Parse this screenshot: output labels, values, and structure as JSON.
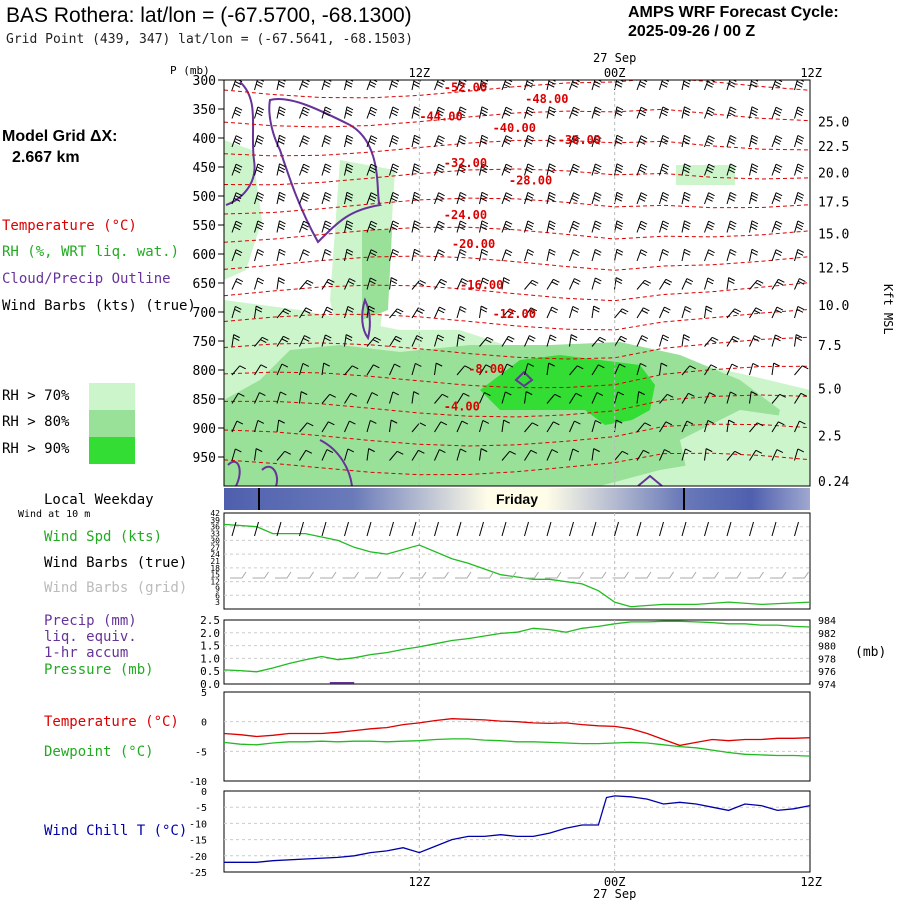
{
  "header": {
    "title": "BAS Rothera:  lat/lon = (-67.5700, -68.1300)",
    "grid_point": "Grid Point (439, 347) lat/lon = (-67.5641, -68.1503)",
    "cycle_label": "AMPS WRF Forecast Cycle:",
    "cycle_value": "2025-09-26 / 00  Z"
  },
  "sidebar": {
    "model_grid_label": "Model Grid ΔX:",
    "model_grid_value": "2.667 km",
    "legend_temperature": "Temperature (°C)",
    "legend_rh": "RH (%, WRT liq. wat.)",
    "legend_cloud": "Cloud/Precip Outline",
    "legend_wind": "Wind Barbs (kts) (true)",
    "rh70": "RH > 70%",
    "rh80": "RH > 80%",
    "rh90": "RH > 90%"
  },
  "time_axis": {
    "top_date": "27 Sep",
    "bottom_date": "27 Sep",
    "ticks": [
      "12Z",
      "00Z",
      "12Z"
    ],
    "local_weekday_label": "Local Weekday",
    "wind_at_10m": "Wind at 10 m",
    "day": "Friday"
  },
  "colors": {
    "temperature": "#dd0000",
    "rh70": "#ccf5cc",
    "rh80": "#99e099",
    "rh90": "#33dd33",
    "cloud": "#663399",
    "wind_speed": "#22bb22",
    "pressure": "#22bb22",
    "dewpoint": "#22bb22",
    "wind_chill": "#0000aa",
    "grid_barbs": "#aaaaaa",
    "band_dark": "#4f5fae",
    "band_light": "#fffde8"
  },
  "chart_data": [
    {
      "type": "heatmap",
      "title": "Cross-section: Temperature, RH, Cloud outline, Wind barbs",
      "left_axis_label": "P (mb)",
      "left_axis_ticks": [
        300,
        350,
        400,
        450,
        500,
        550,
        600,
        650,
        700,
        750,
        800,
        850,
        900,
        950
      ],
      "right_axis_label": "Kft MSL",
      "right_axis_ticks": [
        "25.0",
        "22.5",
        "20.0",
        "17.5",
        "15.0",
        "12.5",
        "10.0",
        "7.5",
        "5.0",
        "2.5",
        "0.24"
      ],
      "right_axis_values": [
        25.0,
        22.5,
        20.0,
        17.5,
        15.0,
        12.5,
        10.0,
        7.5,
        5.0,
        2.5,
        0.24
      ],
      "ylim": [
        300,
        1000
      ],
      "xlim_hours": [
        0,
        36
      ],
      "temperature_contour_labels": [
        {
          "value": "-52.00",
          "hour": 13.5,
          "p": 320
        },
        {
          "value": "-48.00",
          "hour": 18.5,
          "p": 340
        },
        {
          "value": "-44.00",
          "hour": 12.0,
          "p": 370
        },
        {
          "value": "-40.00",
          "hour": 16.5,
          "p": 390
        },
        {
          "value": "-36.00",
          "hour": 20.5,
          "p": 410
        },
        {
          "value": "-32.00",
          "hour": 13.5,
          "p": 450
        },
        {
          "value": "-28.00",
          "hour": 17.5,
          "p": 480
        },
        {
          "value": "-24.00",
          "hour": 13.5,
          "p": 540
        },
        {
          "value": "-20.00",
          "hour": 14.0,
          "p": 590
        },
        {
          "value": "-16.00",
          "hour": 14.5,
          "p": 660
        },
        {
          "value": "-12.00",
          "hour": 16.5,
          "p": 710
        },
        {
          "value": "-8.00",
          "hour": 15.0,
          "p": 805
        },
        {
          "value": "-4.00",
          "hour": 13.5,
          "p": 870
        }
      ]
    },
    {
      "type": "line",
      "title": "Wind Spd (kts)",
      "series_label": "Wind Spd (kts)",
      "barbs_true_label": "Wind Barbs (true)",
      "barbs_grid_label": "Wind Barbs (grid)",
      "y_ticks": [
        3,
        6,
        9,
        12,
        15,
        18,
        21,
        24,
        27,
        30,
        33,
        36,
        39,
        42
      ],
      "ylim": [
        0,
        42
      ],
      "x": [
        0,
        2,
        3,
        5,
        7,
        8,
        9,
        10,
        12,
        14,
        15,
        17,
        18,
        19,
        20,
        21,
        22,
        23,
        24,
        25,
        27,
        29,
        31,
        33,
        36
      ],
      "values": [
        37,
        36,
        33,
        33,
        30,
        27,
        25,
        24,
        28,
        22,
        20,
        15,
        14,
        13,
        13,
        12,
        11,
        8,
        3,
        1,
        2,
        2,
        3,
        2,
        3
      ]
    },
    {
      "type": "line",
      "title": "Precip / Pressure",
      "precip_label_1": "Precip (mm)",
      "precip_label_2": "liq. equiv.",
      "precip_label_3": "1-hr accum",
      "pressure_label": "Pressure (mb)",
      "left_ticks": [
        "0.0",
        "0.5",
        "1.0",
        "1.5",
        "2.0",
        "2.5"
      ],
      "left_tick_values": [
        0.0,
        0.5,
        1.0,
        1.5,
        2.0,
        2.5
      ],
      "right_ticks": [
        "974",
        "976",
        "978",
        "980",
        "982",
        "984"
      ],
      "right_tick_values": [
        974,
        976,
        978,
        980,
        982,
        984
      ],
      "right_unit": "(mb)",
      "pressure_x": [
        0,
        1,
        2,
        3,
        4,
        5,
        6,
        7,
        8,
        9,
        10,
        11,
        12,
        13,
        14,
        15,
        16,
        17,
        18,
        19,
        20,
        21,
        22,
        23,
        24,
        25,
        26,
        27,
        28,
        29,
        30,
        31,
        32,
        33,
        34,
        35,
        36
      ],
      "pressure": [
        976.2,
        976.1,
        975.9,
        976.5,
        977.2,
        977.8,
        978.3,
        977.8,
        978.1,
        978.6,
        978.9,
        979.4,
        979.8,
        980.3,
        980.8,
        981.1,
        981.5,
        981.9,
        982.1,
        982.7,
        982.5,
        982.1,
        982.7,
        983.0,
        983.4,
        983.7,
        983.7,
        983.8,
        983.8,
        983.7,
        983.6,
        983.4,
        983.4,
        983.2,
        983.2,
        983.0,
        982.9
      ],
      "precip_x": [
        6.5,
        7,
        7.5,
        8
      ],
      "precip": [
        0.05,
        0.05,
        0.05,
        0.05
      ]
    },
    {
      "type": "line",
      "title": "Temperature / Dewpoint",
      "temperature_label": "Temperature (°C)",
      "dewpoint_label": "Dewpoint (°C)",
      "y_ticks": [
        "5",
        "0",
        "-5",
        "-10"
      ],
      "y_tick_values": [
        5,
        0,
        -5,
        -10
      ],
      "ylim": [
        -10,
        5
      ],
      "x": [
        0,
        1,
        2,
        3,
        4,
        5,
        6,
        7,
        8,
        9,
        10,
        11,
        12,
        13,
        14,
        15,
        16,
        17,
        18,
        19,
        20,
        21,
        22,
        23,
        24,
        25,
        26,
        27,
        28,
        29,
        30,
        31,
        32,
        33,
        34,
        35,
        36
      ],
      "temperature": [
        -2.0,
        -2.2,
        -2.5,
        -2.3,
        -2.0,
        -2.0,
        -2.0,
        -1.8,
        -1.5,
        -1.2,
        -1.0,
        -0.5,
        -0.2,
        0.2,
        0.5,
        0.4,
        0.3,
        0.1,
        0.0,
        -0.2,
        -0.3,
        -0.2,
        -0.5,
        -0.7,
        -0.8,
        -1.2,
        -2.0,
        -3.0,
        -4.0,
        -3.5,
        -3.0,
        -3.2,
        -3.0,
        -3.0,
        -2.8,
        -2.8,
        -2.7
      ],
      "dewpoint": [
        -3.5,
        -3.8,
        -3.9,
        -3.6,
        -3.4,
        -3.4,
        -3.3,
        -3.4,
        -3.3,
        -3.3,
        -3.4,
        -3.3,
        -3.2,
        -3.0,
        -2.9,
        -2.9,
        -3.1,
        -3.2,
        -3.4,
        -3.4,
        -3.5,
        -3.6,
        -3.7,
        -3.7,
        -3.6,
        -3.5,
        -3.6,
        -3.9,
        -4.2,
        -4.4,
        -4.8,
        -5.2,
        -5.5,
        -5.6,
        -5.7,
        -5.7,
        -5.8
      ]
    },
    {
      "type": "line",
      "title": "Wind Chill T (°C)",
      "series_label": "Wind Chill T (°C)",
      "y_ticks": [
        "0",
        "-5",
        "-10",
        "-15",
        "-20",
        "-25"
      ],
      "y_tick_values": [
        0,
        -5,
        -10,
        -15,
        -20,
        -25
      ],
      "ylim": [
        -25,
        0
      ],
      "x": [
        0,
        2,
        3,
        5,
        7,
        8,
        9,
        10,
        11,
        12,
        13,
        14,
        15,
        16,
        17,
        18,
        19,
        20,
        21,
        22,
        23,
        23.5,
        24,
        25,
        26,
        27,
        28,
        29,
        30,
        31,
        32,
        33,
        34,
        35,
        36
      ],
      "values": [
        -22,
        -22,
        -21.5,
        -21,
        -20.5,
        -20,
        -19,
        -18.5,
        -17.5,
        -19,
        -17,
        -15,
        -14,
        -14,
        -13.5,
        -14,
        -14,
        -13,
        -11.5,
        -10.5,
        -10.5,
        -2,
        -1.5,
        -1.8,
        -2.5,
        -4,
        -3.5,
        -4,
        -5,
        -6,
        -4,
        -4.5,
        -6,
        -5.5,
        -4.5
      ]
    }
  ]
}
